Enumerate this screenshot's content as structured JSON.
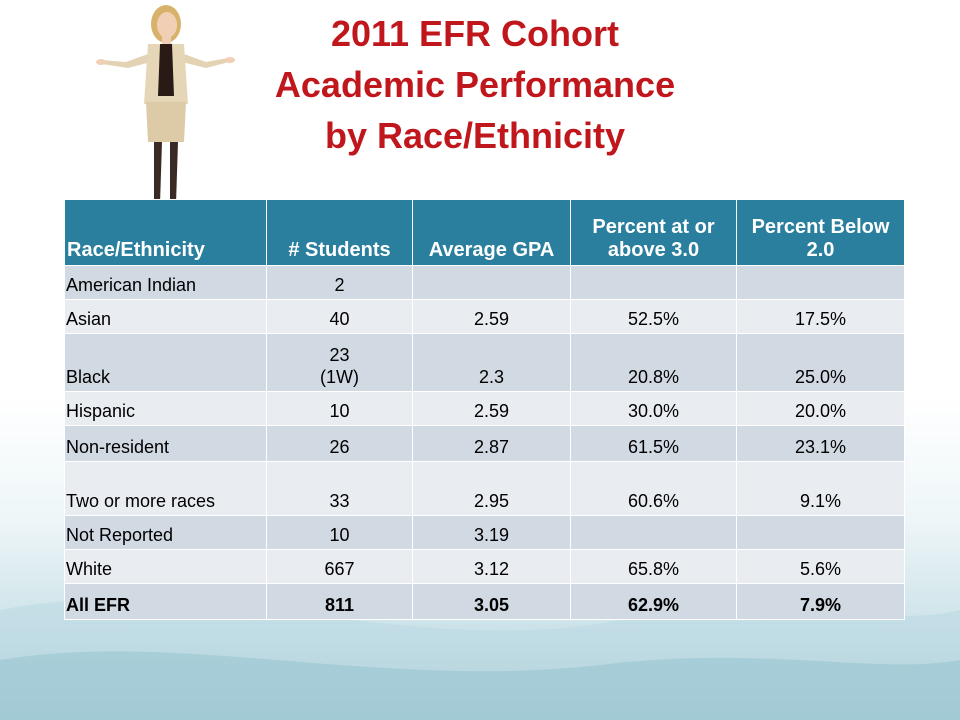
{
  "slide": {
    "title_lines": [
      "2011 EFR Cohort",
      "Academic Performance",
      "by Race/Ethnicity"
    ]
  },
  "colors": {
    "title": "#c0171d",
    "header_bg": "#2a7f9e",
    "row_dark": "#d1d9e2",
    "row_light": "#e9edf2"
  },
  "table": {
    "headers": [
      "Race/Ethnicity",
      "# Students",
      "Average GPA",
      "Percent at or above 3.0",
      "Percent Below 2.0"
    ],
    "rows": [
      {
        "group": "American Indian",
        "students": "2",
        "gpa": "",
        "pct_above_3": "",
        "pct_below_2": ""
      },
      {
        "group": "Asian",
        "students": "40",
        "gpa": "2.59",
        "pct_above_3": "52.5%",
        "pct_below_2": "17.5%"
      },
      {
        "group": "Black",
        "students": "23",
        "students_note": "(1W)",
        "gpa": "2.3",
        "pct_above_3": "20.8%",
        "pct_below_2": "25.0%"
      },
      {
        "group": "Hispanic",
        "students": "10",
        "gpa": "2.59",
        "pct_above_3": "30.0%",
        "pct_below_2": "20.0%"
      },
      {
        "group": "Non-resident",
        "students": "26",
        "gpa": "2.87",
        "pct_above_3": "61.5%",
        "pct_below_2": "23.1%"
      },
      {
        "group": "Two or more races",
        "students": "33",
        "gpa": "2.95",
        "pct_above_3": "60.6%",
        "pct_below_2": "9.1%"
      },
      {
        "group": "Not Reported",
        "students": "10",
        "gpa": "3.19",
        "pct_above_3": "",
        "pct_below_2": ""
      },
      {
        "group": "White",
        "students": "667",
        "gpa": "3.12",
        "pct_above_3": "65.8%",
        "pct_below_2": "5.6%"
      },
      {
        "group": "All EFR",
        "students": "811",
        "gpa": "3.05",
        "pct_above_3": "62.9%",
        "pct_below_2": "7.9%"
      }
    ]
  }
}
